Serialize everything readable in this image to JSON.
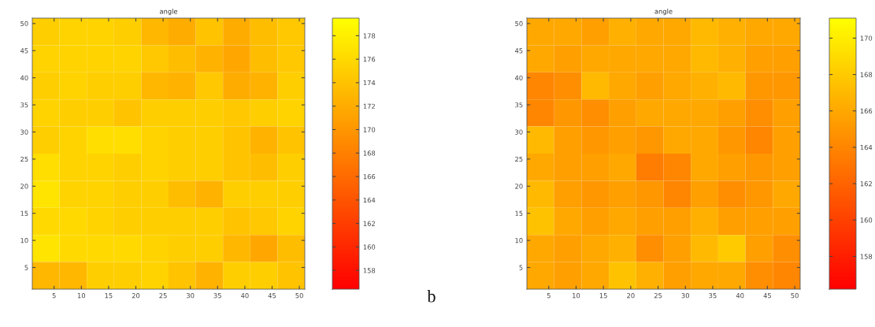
{
  "chart_data": [
    {
      "type": "heatmap",
      "title": "angle",
      "xlim": [
        1,
        51
      ],
      "ylim": [
        1,
        51
      ],
      "xticks": [
        5,
        10,
        15,
        20,
        25,
        30,
        35,
        40,
        45,
        50
      ],
      "yticks": [
        5,
        10,
        15,
        20,
        25,
        30,
        35,
        40,
        45,
        50
      ],
      "clim": [
        156.4,
        179.5
      ],
      "cticks": [
        158,
        160,
        162,
        164,
        166,
        168,
        170,
        172,
        174,
        176,
        178
      ],
      "cells": [
        [
          175,
          175.5,
          175.5,
          175,
          173,
          172,
          174,
          172,
          173.5,
          174.5
        ],
        [
          175.5,
          175.5,
          175.5,
          175.5,
          174.5,
          173.5,
          172.5,
          171.5,
          173.5,
          174.5
        ],
        [
          175,
          175.5,
          175,
          175,
          173,
          172.5,
          174.5,
          172,
          172.5,
          175
        ],
        [
          175.5,
          175,
          175,
          174,
          175,
          175,
          175,
          174.5,
          175,
          175.5
        ],
        [
          175,
          175.5,
          176.5,
          176.5,
          175.5,
          175,
          175,
          174,
          172.5,
          174
        ],
        [
          176.5,
          175.5,
          175.5,
          175,
          175.5,
          175,
          175,
          174,
          173.5,
          175
        ],
        [
          177,
          175.5,
          175.5,
          175,
          175,
          173.5,
          172.5,
          175,
          175,
          175
        ],
        [
          176,
          176,
          175.5,
          175,
          175,
          175,
          175,
          174,
          174.5,
          175.5
        ],
        [
          177,
          176,
          176,
          176,
          175.5,
          175,
          175,
          173,
          171.5,
          173.5
        ],
        [
          173,
          173,
          175,
          175,
          175.5,
          174,
          172.5,
          175,
          175,
          174
        ]
      ],
      "annotations": [
        "b"
      ]
    },
    {
      "type": "heatmap",
      "title": "angle",
      "xlim": [
        1,
        51
      ],
      "ylim": [
        1,
        51
      ],
      "xticks": [
        5,
        10,
        15,
        20,
        25,
        30,
        35,
        40,
        45,
        50
      ],
      "yticks": [
        5,
        10,
        15,
        20,
        25,
        30,
        35,
        40,
        45,
        50
      ],
      "clim": [
        156.2,
        171.1
      ],
      "cticks": [
        158,
        160,
        162,
        164,
        166,
        168,
        170
      ],
      "cells": [
        [
          166,
          166,
          165.5,
          166.5,
          166,
          166,
          167,
          166.5,
          166,
          166
        ],
        [
          166,
          165.5,
          166,
          166,
          166,
          166,
          167,
          166.5,
          165.5,
          165.5
        ],
        [
          164,
          164.5,
          167,
          166,
          165.5,
          166,
          166.5,
          167,
          165,
          165
        ],
        [
          164,
          165,
          164.5,
          165.5,
          166,
          166,
          166,
          165.5,
          164.5,
          165.5
        ],
        [
          167,
          165.5,
          165,
          165.5,
          165,
          166,
          166,
          165,
          164,
          165.5
        ],
        [
          166,
          165.5,
          165.5,
          166,
          163.5,
          164,
          166,
          165.5,
          165,
          165.5
        ],
        [
          167,
          165.5,
          165,
          165.5,
          165,
          164,
          165.5,
          164.5,
          165,
          166
        ],
        [
          167.5,
          166,
          165.5,
          166,
          165.5,
          165.5,
          166.5,
          165.5,
          165.5,
          165.5
        ],
        [
          166,
          165.5,
          166,
          166.5,
          164.5,
          165.5,
          167,
          168,
          165.5,
          164.5
        ],
        [
          166,
          165.5,
          166,
          167.5,
          166.5,
          165.5,
          166,
          166,
          164.5,
          164
        ]
      ]
    }
  ]
}
